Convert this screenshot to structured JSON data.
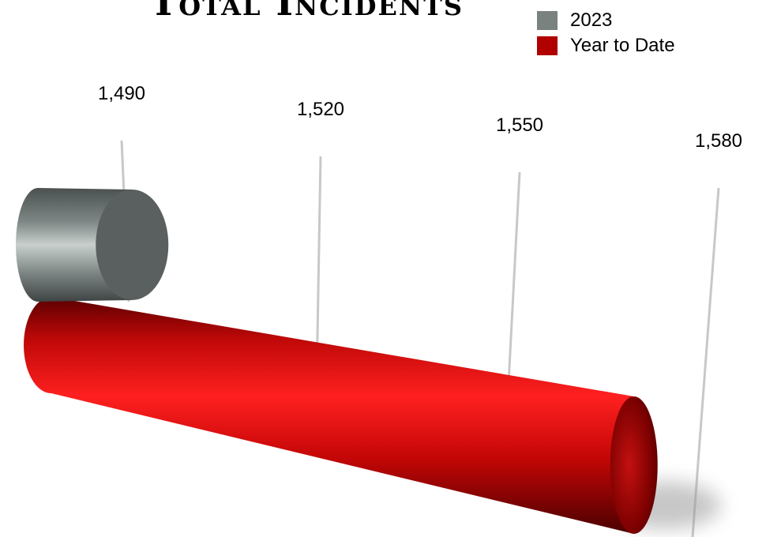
{
  "chart_data": {
    "type": "bar",
    "orientation": "horizontal",
    "style": "3d-cylinder",
    "title": "Total Incidents",
    "xlabel": "",
    "ylabel": "",
    "xlim": [
      1480,
      1590
    ],
    "ticks": [
      1490,
      1520,
      1550,
      1580
    ],
    "tick_labels": [
      "1,490",
      "1,520",
      "1,550",
      "1,580"
    ],
    "grid": true,
    "legend_position": "top-right",
    "series": [
      {
        "name": "2023",
        "color": "#7a8280",
        "value": 1485
      },
      {
        "name": "Year to Date",
        "color": "#b00000",
        "value": 1585
      }
    ]
  }
}
